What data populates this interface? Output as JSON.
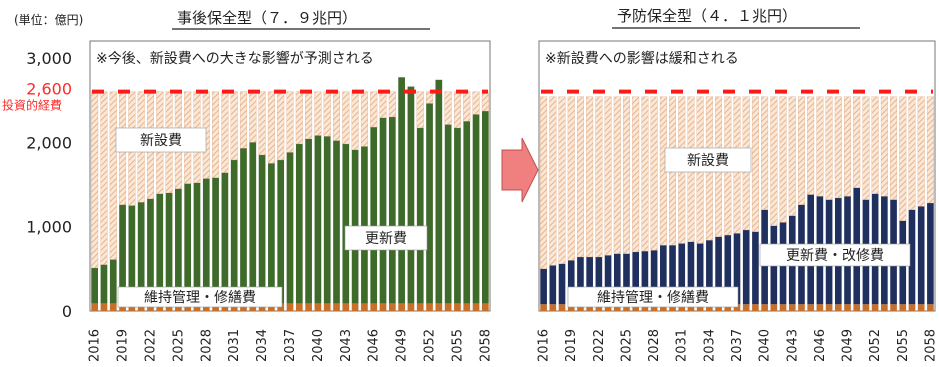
{
  "unit_label": "(単位：億円)",
  "budget_label": "投資的経費",
  "colors": {
    "renewal_left": "#3e6b2a",
    "renewal_right": "#1f2f5e",
    "maintenance": "#c8702a",
    "new_fill": "#fbe7d6",
    "new_hatch": "#e0a77e",
    "budget_line": "#ff1a1a",
    "budget_label": "#ff2a2a",
    "arrow": "#f08080"
  },
  "chart_data": [
    {
      "type": "bar",
      "title": "事後保全型（７．９兆円）",
      "annotation": "※今後、新設費への大きな影響が予測される",
      "ylim": [
        0,
        3200
      ],
      "yticks": [
        0,
        1000,
        2000,
        3000
      ],
      "ytick_labels": [
        "0",
        "1,000",
        "2,000",
        "3,000"
      ],
      "budget_value": 2600,
      "budget_value_label": "2,600",
      "xtick_labels": [
        "2016",
        "2019",
        "2022",
        "2025",
        "2028",
        "2031",
        "2034",
        "2037",
        "2040",
        "2043",
        "2046",
        "2049",
        "2052",
        "2055",
        "2058"
      ],
      "x_start": 2016,
      "x_end": 2058,
      "series": [
        {
          "name": "維持管理・修繕費",
          "values": [
            90,
            90,
            90,
            90,
            90,
            90,
            90,
            90,
            90,
            90,
            90,
            90,
            90,
            90,
            90,
            90,
            90,
            90,
            90,
            90,
            90,
            90,
            90,
            90,
            90,
            90,
            90,
            90,
            90,
            90,
            90,
            90,
            90,
            90,
            90,
            90,
            90,
            90,
            90,
            90,
            90,
            90,
            90
          ]
        },
        {
          "name": "更新費",
          "values": [
            420,
            460,
            520,
            1170,
            1160,
            1200,
            1240,
            1300,
            1310,
            1360,
            1420,
            1430,
            1480,
            1490,
            1550,
            1700,
            1840,
            1910,
            1760,
            1660,
            1700,
            1790,
            1890,
            1950,
            1990,
            1980,
            1930,
            1890,
            1820,
            1860,
            2090,
            2200,
            2210,
            2680,
            2570,
            2080,
            2370,
            2650,
            2120,
            2080,
            2160,
            2240,
            2280
          ]
        },
        {
          "name": "新設費",
          "values": [
            2090,
            2050,
            1990,
            1340,
            1350,
            1310,
            1270,
            1210,
            1200,
            1150,
            1090,
            1080,
            1030,
            1020,
            960,
            810,
            670,
            600,
            750,
            850,
            810,
            720,
            620,
            560,
            520,
            530,
            580,
            620,
            690,
            650,
            420,
            310,
            300,
            0,
            0,
            430,
            140,
            0,
            390,
            430,
            350,
            270,
            230
          ]
        }
      ],
      "labels": {
        "new": "新設費",
        "renewal": "更新費",
        "maintenance": "維持管理・修繕費"
      }
    },
    {
      "type": "bar",
      "title": "予防保全型（４．１兆円）",
      "annotation": "※新設費への影響は緩和される",
      "ylim": [
        0,
        3200
      ],
      "budget_value": 2600,
      "xtick_labels": [
        "2016",
        "2019",
        "2022",
        "2025",
        "2028",
        "2031",
        "2034",
        "2037",
        "2040",
        "2043",
        "2046",
        "2049",
        "2052",
        "2055",
        "2058"
      ],
      "x_start": 2016,
      "x_end": 2058,
      "series": [
        {
          "name": "維持管理・修繕費",
          "values": [
            80,
            80,
            80,
            80,
            80,
            80,
            80,
            80,
            80,
            80,
            80,
            80,
            80,
            80,
            80,
            80,
            80,
            80,
            80,
            80,
            80,
            80,
            80,
            80,
            80,
            80,
            80,
            80,
            80,
            80,
            80,
            80,
            80,
            80,
            80,
            80,
            80,
            80,
            80,
            80,
            80,
            80,
            80
          ]
        },
        {
          "name": "更新・改修費",
          "values": [
            420,
            460,
            480,
            520,
            560,
            560,
            560,
            580,
            600,
            600,
            620,
            630,
            640,
            700,
            700,
            720,
            740,
            720,
            760,
            800,
            820,
            840,
            880,
            860,
            1120,
            930,
            970,
            1050,
            1180,
            1300,
            1280,
            1240,
            1260,
            1280,
            1380,
            1240,
            1310,
            1280,
            1240,
            990,
            1120,
            1160,
            1200
          ]
        },
        {
          "name": "新設費",
          "values": [
            2040,
            2000,
            1980,
            1940,
            1900,
            1900,
            1900,
            1880,
            1860,
            1860,
            1840,
            1830,
            1820,
            1760,
            1760,
            1740,
            1720,
            1740,
            1700,
            1660,
            1640,
            1620,
            1580,
            1600,
            1340,
            1530,
            1490,
            1410,
            1280,
            1160,
            1180,
            1220,
            1200,
            1180,
            1080,
            1220,
            1150,
            1180,
            1220,
            1470,
            1340,
            1300,
            1260
          ]
        }
      ],
      "labels": {
        "new": "新設費",
        "renewal": "更新費・改修費",
        "maintenance": "維持管理・修繕費"
      }
    }
  ]
}
